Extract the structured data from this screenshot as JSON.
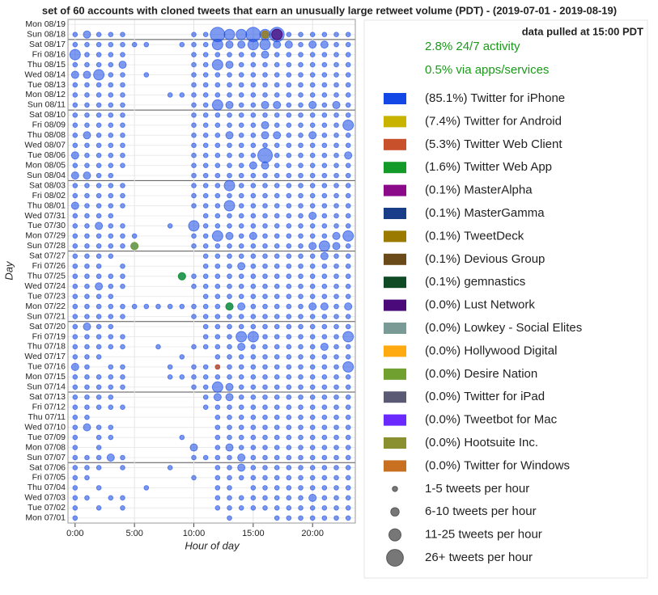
{
  "chart_data": {
    "type": "bubble-grid",
    "title": "set of 60 accounts with cloned tweets that earn an unusually large retweet volume (PDT) - (2019-07-01 - 2019-08-19)",
    "xlabel": "Hour of day",
    "ylabel": "Day",
    "xlim": [
      -0.6,
      23.6
    ],
    "xticks": [
      {
        "value": 0,
        "label": "0:00"
      },
      {
        "value": 5,
        "label": "5:00"
      },
      {
        "value": 10,
        "label": "10:00"
      },
      {
        "value": 15,
        "label": "15:00"
      },
      {
        "value": 20,
        "label": "20:00"
      }
    ],
    "grid": true,
    "days": [
      "Mon 07/01",
      "Tue 07/02",
      "Wed 07/03",
      "Thu 07/04",
      "Fri 07/05",
      "Sat 07/06",
      "Sun 07/07",
      "Mon 07/08",
      "Tue 07/09",
      "Wed 07/10",
      "Thu 07/11",
      "Fri 07/12",
      "Sat 07/13",
      "Sun 07/14",
      "Mon 07/15",
      "Tue 07/16",
      "Wed 07/17",
      "Thu 07/18",
      "Fri 07/19",
      "Sat 07/20",
      "Sun 07/21",
      "Mon 07/22",
      "Tue 07/23",
      "Wed 07/24",
      "Thu 07/25",
      "Fri 07/26",
      "Sat 07/27",
      "Sun 07/28",
      "Mon 07/29",
      "Tue 07/30",
      "Wed 07/31",
      "Thu 08/01",
      "Fri 08/02",
      "Sat 08/03",
      "Sun 08/04",
      "Mon 08/05",
      "Tue 08/06",
      "Wed 08/07",
      "Thu 08/08",
      "Fri 08/09",
      "Sat 08/10",
      "Sun 08/11",
      "Mon 08/12",
      "Tue 08/13",
      "Wed 08/14",
      "Thu 08/15",
      "Fri 08/16",
      "Sat 08/17",
      "Sun 08/18",
      "Mon 08/19"
    ],
    "sizes": [
      [
        1,
        0,
        0,
        0,
        0,
        0,
        0,
        0,
        0,
        0,
        0,
        0,
        0,
        1,
        0,
        0,
        0,
        1,
        1,
        1,
        1,
        1,
        1,
        1
      ],
      [
        1,
        0,
        1,
        0,
        1,
        0,
        0,
        0,
        0,
        0,
        0,
        0,
        1,
        1,
        1,
        1,
        1,
        1,
        1,
        1,
        1,
        1,
        1,
        1
      ],
      [
        1,
        1,
        0,
        1,
        1,
        0,
        0,
        0,
        0,
        0,
        0,
        0,
        1,
        1,
        1,
        1,
        1,
        1,
        1,
        1,
        2,
        1,
        1,
        1
      ],
      [
        1,
        0,
        1,
        0,
        0,
        0,
        1,
        0,
        0,
        0,
        0,
        0,
        1,
        1,
        0,
        1,
        1,
        1,
        1,
        1,
        1,
        1,
        1,
        1
      ],
      [
        1,
        1,
        0,
        0,
        0,
        0,
        0,
        0,
        0,
        0,
        1,
        0,
        1,
        1,
        1,
        1,
        1,
        1,
        1,
        1,
        1,
        1,
        1,
        1
      ],
      [
        1,
        1,
        1,
        0,
        1,
        0,
        0,
        0,
        1,
        0,
        0,
        0,
        1,
        1,
        2,
        1,
        1,
        1,
        1,
        1,
        1,
        1,
        1,
        1
      ],
      [
        1,
        1,
        1,
        2,
        1,
        0,
        0,
        0,
        0,
        0,
        1,
        1,
        1,
        1,
        2,
        1,
        1,
        1,
        1,
        1,
        1,
        1,
        1,
        1
      ],
      [
        1,
        0,
        1,
        0,
        0,
        0,
        0,
        0,
        0,
        0,
        2,
        0,
        1,
        2,
        1,
        1,
        1,
        1,
        1,
        1,
        1,
        1,
        1,
        1
      ],
      [
        1,
        0,
        1,
        1,
        0,
        0,
        0,
        0,
        0,
        1,
        0,
        0,
        1,
        1,
        1,
        1,
        1,
        1,
        1,
        1,
        1,
        1,
        1,
        1
      ],
      [
        1,
        2,
        1,
        1,
        0,
        0,
        0,
        0,
        0,
        0,
        0,
        0,
        1,
        1,
        1,
        1,
        1,
        1,
        1,
        1,
        1,
        1,
        1,
        1
      ],
      [
        1,
        1,
        0,
        0,
        0,
        0,
        0,
        0,
        0,
        0,
        0,
        0,
        1,
        1,
        1,
        1,
        1,
        1,
        1,
        1,
        1,
        1,
        1,
        1
      ],
      [
        1,
        1,
        1,
        1,
        1,
        0,
        0,
        0,
        0,
        0,
        0,
        1,
        1,
        1,
        1,
        1,
        1,
        1,
        1,
        1,
        1,
        1,
        1,
        1
      ],
      [
        1,
        1,
        1,
        1,
        0,
        0,
        0,
        0,
        0,
        0,
        0,
        1,
        2,
        2,
        1,
        1,
        1,
        1,
        1,
        1,
        1,
        1,
        1,
        1
      ],
      [
        1,
        1,
        1,
        1,
        1,
        0,
        0,
        0,
        0,
        0,
        1,
        1,
        3,
        2,
        1,
        1,
        1,
        1,
        1,
        1,
        1,
        1,
        1,
        1
      ],
      [
        1,
        1,
        1,
        1,
        1,
        0,
        0,
        0,
        1,
        1,
        1,
        1,
        1,
        1,
        1,
        1,
        1,
        1,
        1,
        1,
        1,
        1,
        1,
        1
      ],
      [
        2,
        1,
        0,
        1,
        1,
        0,
        0,
        0,
        1,
        0,
        1,
        1,
        1,
        1,
        1,
        1,
        1,
        1,
        1,
        1,
        1,
        1,
        1,
        3
      ],
      [
        1,
        1,
        1,
        0,
        0,
        0,
        0,
        0,
        0,
        1,
        0,
        0,
        1,
        1,
        1,
        1,
        1,
        1,
        1,
        1,
        1,
        1,
        1,
        1
      ],
      [
        1,
        1,
        1,
        1,
        1,
        0,
        0,
        1,
        0,
        0,
        1,
        1,
        1,
        1,
        2,
        1,
        1,
        1,
        1,
        1,
        1,
        2,
        1,
        1
      ],
      [
        1,
        1,
        1,
        1,
        1,
        0,
        0,
        0,
        0,
        0,
        0,
        1,
        1,
        1,
        3,
        3,
        1,
        1,
        1,
        1,
        1,
        1,
        1,
        3
      ],
      [
        1,
        2,
        1,
        1,
        0,
        0,
        0,
        0,
        0,
        0,
        0,
        1,
        1,
        1,
        1,
        1,
        1,
        1,
        1,
        1,
        1,
        1,
        1,
        1
      ],
      [
        1,
        1,
        1,
        1,
        1,
        0,
        0,
        0,
        0,
        0,
        1,
        1,
        1,
        1,
        1,
        1,
        1,
        1,
        1,
        1,
        1,
        1,
        1,
        1
      ],
      [
        1,
        1,
        1,
        1,
        1,
        1,
        1,
        1,
        1,
        1,
        1,
        1,
        1,
        2,
        2,
        1,
        1,
        1,
        1,
        1,
        2,
        2,
        1,
        2
      ],
      [
        1,
        1,
        1,
        1,
        0,
        0,
        0,
        0,
        0,
        0,
        0,
        1,
        1,
        1,
        1,
        1,
        1,
        1,
        1,
        1,
        1,
        1,
        1,
        1
      ],
      [
        1,
        1,
        2,
        1,
        1,
        0,
        0,
        0,
        0,
        0,
        1,
        1,
        1,
        1,
        1,
        1,
        1,
        1,
        1,
        1,
        1,
        1,
        1,
        1
      ],
      [
        1,
        1,
        1,
        1,
        1,
        0,
        0,
        0,
        0,
        2,
        1,
        1,
        1,
        1,
        1,
        1,
        1,
        1,
        1,
        1,
        1,
        1,
        1,
        1
      ],
      [
        1,
        1,
        1,
        0,
        1,
        0,
        0,
        0,
        0,
        0,
        0,
        1,
        1,
        1,
        2,
        1,
        1,
        1,
        1,
        1,
        1,
        1,
        1,
        1
      ],
      [
        1,
        1,
        1,
        1,
        0,
        0,
        0,
        0,
        0,
        0,
        0,
        1,
        1,
        1,
        1,
        1,
        1,
        1,
        1,
        1,
        1,
        2,
        1,
        1
      ],
      [
        1,
        1,
        1,
        1,
        1,
        2,
        0,
        0,
        0,
        0,
        1,
        1,
        1,
        1,
        1,
        1,
        1,
        1,
        1,
        1,
        2,
        3,
        2,
        1
      ],
      [
        1,
        1,
        1,
        1,
        1,
        1,
        0,
        0,
        0,
        0,
        1,
        1,
        3,
        2,
        1,
        2,
        1,
        1,
        1,
        1,
        1,
        1,
        2,
        3
      ],
      [
        1,
        1,
        2,
        1,
        1,
        0,
        0,
        0,
        1,
        0,
        3,
        1,
        1,
        1,
        1,
        1,
        1,
        1,
        1,
        1,
        1,
        1,
        1,
        1
      ],
      [
        1,
        1,
        1,
        1,
        0,
        0,
        0,
        0,
        0,
        0,
        0,
        1,
        1,
        1,
        1,
        1,
        1,
        1,
        1,
        1,
        2,
        1,
        1,
        1
      ],
      [
        2,
        1,
        1,
        1,
        1,
        0,
        0,
        0,
        0,
        0,
        1,
        1,
        1,
        3,
        1,
        1,
        1,
        1,
        1,
        1,
        1,
        1,
        1,
        1
      ],
      [
        1,
        1,
        1,
        1,
        1,
        0,
        0,
        0,
        0,
        0,
        1,
        1,
        1,
        1,
        1,
        1,
        1,
        1,
        1,
        1,
        1,
        1,
        1,
        1
      ],
      [
        1,
        1,
        1,
        1,
        1,
        0,
        0,
        0,
        0,
        0,
        1,
        1,
        1,
        3,
        1,
        1,
        1,
        1,
        1,
        1,
        1,
        1,
        1,
        1
      ],
      [
        2,
        2,
        1,
        1,
        0,
        0,
        0,
        0,
        0,
        0,
        1,
        1,
        1,
        1,
        1,
        1,
        1,
        1,
        1,
        1,
        1,
        1,
        1,
        1
      ],
      [
        1,
        1,
        1,
        1,
        1,
        0,
        0,
        0,
        0,
        0,
        1,
        1,
        1,
        1,
        1,
        2,
        2,
        1,
        1,
        1,
        1,
        1,
        1,
        1
      ],
      [
        2,
        1,
        1,
        1,
        1,
        0,
        0,
        0,
        0,
        0,
        1,
        1,
        1,
        1,
        1,
        1,
        4,
        1,
        1,
        1,
        1,
        1,
        1,
        2
      ],
      [
        1,
        1,
        1,
        1,
        1,
        0,
        0,
        0,
        0,
        0,
        1,
        1,
        1,
        1,
        1,
        1,
        1,
        1,
        1,
        1,
        1,
        1,
        1,
        1
      ],
      [
        1,
        2,
        1,
        1,
        1,
        0,
        0,
        0,
        0,
        0,
        1,
        1,
        1,
        2,
        1,
        1,
        2,
        2,
        1,
        1,
        2,
        1,
        1,
        1
      ],
      [
        1,
        1,
        1,
        1,
        1,
        0,
        0,
        0,
        0,
        0,
        1,
        1,
        1,
        1,
        1,
        1,
        2,
        1,
        1,
        1,
        1,
        1,
        1,
        3
      ],
      [
        1,
        1,
        1,
        1,
        1,
        0,
        0,
        0,
        0,
        0,
        1,
        1,
        1,
        1,
        1,
        1,
        1,
        1,
        1,
        1,
        1,
        1,
        1,
        1
      ],
      [
        1,
        1,
        1,
        1,
        1,
        0,
        0,
        0,
        0,
        0,
        1,
        1,
        3,
        2,
        1,
        1,
        2,
        2,
        1,
        1,
        2,
        1,
        2,
        1
      ],
      [
        1,
        1,
        1,
        1,
        1,
        0,
        0,
        0,
        1,
        1,
        1,
        1,
        1,
        1,
        1,
        1,
        1,
        1,
        1,
        1,
        1,
        1,
        1,
        1
      ],
      [
        1,
        1,
        1,
        1,
        1,
        0,
        0,
        0,
        0,
        0,
        1,
        1,
        1,
        1,
        1,
        1,
        1,
        1,
        1,
        1,
        1,
        1,
        1,
        1
      ],
      [
        2,
        2,
        3,
        1,
        1,
        0,
        1,
        0,
        0,
        0,
        1,
        1,
        1,
        1,
        1,
        1,
        1,
        1,
        1,
        1,
        1,
        1,
        1,
        1
      ],
      [
        1,
        1,
        1,
        1,
        2,
        0,
        0,
        0,
        0,
        0,
        1,
        1,
        3,
        2,
        1,
        1,
        1,
        1,
        1,
        1,
        1,
        1,
        1,
        1
      ],
      [
        3,
        1,
        1,
        1,
        1,
        0,
        0,
        0,
        0,
        0,
        1,
        1,
        1,
        1,
        1,
        1,
        2,
        1,
        1,
        1,
        1,
        1,
        1,
        1
      ],
      [
        1,
        1,
        1,
        1,
        1,
        1,
        1,
        0,
        0,
        1,
        1,
        1,
        3,
        2,
        2,
        3,
        3,
        2,
        2,
        1,
        2,
        2,
        1,
        1
      ],
      [
        1,
        2,
        1,
        1,
        1,
        0,
        0,
        0,
        0,
        0,
        1,
        1,
        4,
        3,
        3,
        4,
        3,
        4,
        1,
        1,
        1,
        1,
        1,
        1
      ],
      [
        0,
        0,
        0,
        0,
        0,
        0,
        0,
        0,
        0,
        0,
        0,
        0,
        0,
        0,
        0,
        0,
        0,
        0,
        0,
        0,
        0,
        0,
        0,
        0
      ]
    ],
    "highlights": [
      {
        "day": 48,
        "hour": 17,
        "size": 3,
        "source": 9
      },
      {
        "day": 48,
        "hour": 16,
        "size": 2,
        "source": 6
      },
      {
        "day": 27,
        "hour": 5,
        "size": 2,
        "source": 12
      },
      {
        "day": 24,
        "hour": 9,
        "size": 2,
        "source": 3
      },
      {
        "day": 15,
        "hour": 12,
        "size": 1,
        "source": 2
      },
      {
        "day": 21,
        "hour": 13,
        "size": 2,
        "source": 3
      }
    ],
    "notes": [
      "data pulled at 15:00 PDT",
      "2.8% 24/7 activity",
      "0.5% via apps/services"
    ],
    "series": [
      {
        "name": "(85.1%) Twitter for iPhone",
        "color": "#1448e6"
      },
      {
        "name": "(7.4%) Twitter for Android",
        "color": "#c8b400"
      },
      {
        "name": "(5.3%) Twitter Web Client",
        "color": "#c8502a"
      },
      {
        "name": "(1.6%) Twitter Web App",
        "color": "#149a28"
      },
      {
        "name": "(0.1%) MasterAlpha",
        "color": "#8a0a8a"
      },
      {
        "name": "(0.1%) MasterGamma",
        "color": "#1a3d8a"
      },
      {
        "name": "(0.1%) TweetDeck",
        "color": "#9a7a00"
      },
      {
        "name": "(0.1%) Devious Group",
        "color": "#6b4a1a"
      },
      {
        "name": "(0.1%) gemnastics",
        "color": "#0f4a25"
      },
      {
        "name": "(0.0%) Lust Network",
        "color": "#4a0a7a"
      },
      {
        "name": "(0.0%) Lowkey - Social Elites",
        "color": "#7a9a95"
      },
      {
        "name": "(0.0%) Hollywood Digital",
        "color": "#ffaa10"
      },
      {
        "name": "(0.0%) Desire Nation",
        "color": "#70a030"
      },
      {
        "name": "(0.0%) Twitter for iPad",
        "color": "#5a5a75"
      },
      {
        "name": "(0.0%) Tweetbot for Mac",
        "color": "#6a2aff"
      },
      {
        "name": "(0.0%) Hootsuite Inc.",
        "color": "#8a9030"
      },
      {
        "name": "(0.0%) Twitter for Windows",
        "color": "#c87020"
      }
    ],
    "size_legend": [
      "1-5 tweets per hour",
      "6-10 tweets per hour",
      "11-25 tweets per hour",
      "26+ tweets per hour"
    ]
  }
}
